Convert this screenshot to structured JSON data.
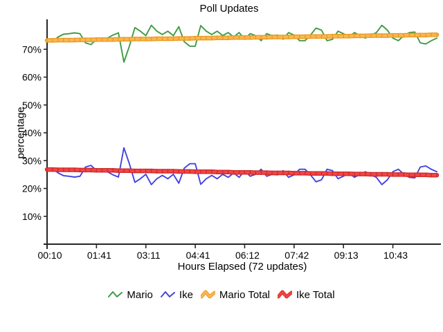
{
  "title": "Poll Updates",
  "x_axis": {
    "label": "Hours Elapsed (72 updates)"
  },
  "y_axis": {
    "label": "percentage"
  },
  "chart_data": {
    "type": "line",
    "title": "Poll Updates",
    "xlabel": "Hours Elapsed (72 updates)",
    "ylabel": "percentage",
    "ylim": [
      0,
      80
    ],
    "y_tick_values": [
      10,
      20,
      30,
      40,
      50,
      60,
      70
    ],
    "y_tick_labels": [
      "10%",
      "20%",
      "30%",
      "40%",
      "50%",
      "60%",
      "70%"
    ],
    "x_tick_indices": [
      0,
      9,
      18,
      27,
      36,
      45,
      54,
      63
    ],
    "x_tick_labels": [
      "00:10",
      "01:41",
      "03:11",
      "04:41",
      "06:12",
      "07:42",
      "09:13",
      "10:43"
    ],
    "n_points": 72,
    "grid": false,
    "legend_position": "bottom",
    "series": [
      {
        "name": "Mario",
        "color": "#3E9B41",
        "style": "thin",
        "values": [
          73.7,
          72.7,
          74.4,
          75.4,
          75.6,
          75.9,
          75.6,
          72.3,
          71.7,
          73.6,
          73.1,
          74.0,
          75.1,
          75.9,
          65.4,
          71.1,
          77.8,
          76.5,
          74.9,
          78.6,
          76.5,
          75.3,
          76.5,
          74.9,
          78.1,
          72.7,
          71.1,
          71.1,
          78.5,
          76.5,
          75.3,
          76.5,
          74.9,
          76.0,
          74.4,
          76.0,
          73.6,
          75.6,
          74.9,
          73.1,
          75.6,
          74.9,
          75.1,
          73.6,
          76.0,
          75.1,
          73.1,
          73.1,
          75.1,
          77.6,
          76.9,
          73.1,
          73.6,
          76.5,
          75.6,
          74.4,
          76.0,
          74.9,
          74.0,
          75.1,
          76.0,
          78.6,
          76.9,
          74.0,
          73.1,
          74.9,
          76.0,
          76.2,
          72.3,
          71.9,
          73.1,
          74.0
        ]
      },
      {
        "name": "Ike",
        "color": "#4243E0",
        "style": "thin",
        "values": [
          26.3,
          27.3,
          25.6,
          24.6,
          24.4,
          24.1,
          24.4,
          27.7,
          28.3,
          26.4,
          26.9,
          26.0,
          24.9,
          24.1,
          34.6,
          28.9,
          22.2,
          23.5,
          25.1,
          21.4,
          23.5,
          24.7,
          23.5,
          25.1,
          21.9,
          27.3,
          28.9,
          28.9,
          21.5,
          23.5,
          24.7,
          23.5,
          25.1,
          24.0,
          25.6,
          24.0,
          26.4,
          24.4,
          25.1,
          26.9,
          24.4,
          25.1,
          24.9,
          26.4,
          24.0,
          24.9,
          26.9,
          26.9,
          24.9,
          22.4,
          23.1,
          26.9,
          26.4,
          23.5,
          24.4,
          25.6,
          24.0,
          25.1,
          26.0,
          24.9,
          24.0,
          21.4,
          23.1,
          26.0,
          26.9,
          25.1,
          24.0,
          23.8,
          27.7,
          28.1,
          26.9,
          26.0
        ]
      },
      {
        "name": "Mario Total",
        "color": "#FBB652",
        "edge_color": "#E8991F",
        "style": "total",
        "values": [
          73.2,
          73.2,
          73.3,
          73.3,
          73.3,
          73.3,
          73.4,
          73.4,
          73.4,
          73.5,
          73.5,
          73.5,
          73.5,
          73.6,
          73.6,
          73.6,
          73.7,
          73.7,
          73.7,
          73.7,
          73.8,
          73.8,
          73.8,
          73.8,
          73.9,
          73.9,
          73.9,
          74.0,
          74.0,
          74.0,
          74.0,
          74.1,
          74.1,
          74.1,
          74.2,
          74.2,
          74.2,
          74.2,
          74.3,
          74.3,
          74.3,
          74.4,
          74.4,
          74.4,
          74.4,
          74.5,
          74.5,
          74.5,
          74.6,
          74.6,
          74.6,
          74.6,
          74.7,
          74.7,
          74.7,
          74.7,
          74.8,
          74.8,
          74.8,
          74.9,
          74.9,
          74.9,
          74.9,
          75.0,
          75.0,
          75.0,
          75.1,
          75.1,
          75.1,
          75.1,
          75.2,
          75.2
        ]
      },
      {
        "name": "Ike Total",
        "color": "#F24545",
        "edge_color": "#CE2929",
        "style": "total",
        "values": [
          26.8,
          26.8,
          26.7,
          26.7,
          26.7,
          26.7,
          26.6,
          26.6,
          26.6,
          26.5,
          26.5,
          26.5,
          26.5,
          26.4,
          26.4,
          26.4,
          26.3,
          26.3,
          26.3,
          26.3,
          26.2,
          26.2,
          26.2,
          26.2,
          26.1,
          26.1,
          26.1,
          26.0,
          26.0,
          26.0,
          26.0,
          25.9,
          25.9,
          25.9,
          25.8,
          25.8,
          25.8,
          25.8,
          25.7,
          25.7,
          25.7,
          25.6,
          25.6,
          25.6,
          25.6,
          25.5,
          25.5,
          25.5,
          25.4,
          25.4,
          25.4,
          25.4,
          25.3,
          25.3,
          25.3,
          25.3,
          25.2,
          25.2,
          25.2,
          25.1,
          25.1,
          25.1,
          25.1,
          25.0,
          25.0,
          25.0,
          24.9,
          24.9,
          24.9,
          24.9,
          24.8,
          24.8
        ]
      }
    ]
  }
}
